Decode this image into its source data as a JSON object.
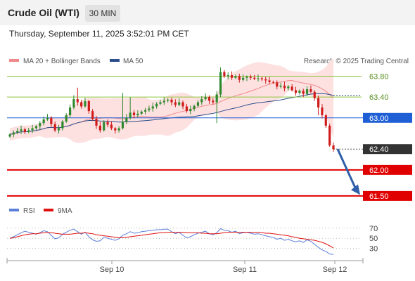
{
  "header": {
    "title": "Crude Oil (WTI)",
    "timeframe": "30 MIN",
    "datetime": "Thursday, September 11, 2025 3:52:01 PM CET"
  },
  "legend": {
    "ma20_label": "MA 20 + Bollinger Bands",
    "ma50_label": "MA 50",
    "ma20_color": "#f08a8a",
    "ma50_color": "#2c4f8c",
    "credit": "Research © 2025 Trading Central"
  },
  "rsi_legend": {
    "rsi_label": "RSI",
    "ma_label": "9MA",
    "rsi_color": "#5a7fd8",
    "ma_color": "#e01010"
  },
  "chart_data": [
    {
      "type": "candlestick",
      "title": "",
      "ylim": [
        61.35,
        64.05
      ],
      "x_ticks": [
        "Sep 10",
        "Sep 11",
        "Sep 12"
      ],
      "levels": [
        {
          "value": 63.8,
          "label": "63.80",
          "style": "resistance",
          "color": "#8cc63f"
        },
        {
          "value": 63.4,
          "label": "63.40",
          "style": "resistance",
          "color": "#8cc63f"
        },
        {
          "value": 63.0,
          "label": "63.00",
          "style": "pivot",
          "color": "#1f5fd6"
        },
        {
          "value": 62.4,
          "label": "62.40",
          "style": "last",
          "color": "#333333"
        },
        {
          "value": 62.0,
          "label": "62.00",
          "style": "support",
          "color": "#e00000"
        },
        {
          "value": 61.5,
          "label": "61.50",
          "style": "support",
          "color": "#e00000"
        }
      ],
      "close": [
        62.68,
        62.72,
        62.75,
        62.78,
        62.73,
        62.76,
        62.8,
        62.84,
        62.9,
        62.97,
        63.0,
        62.88,
        62.76,
        62.8,
        62.93,
        63.05,
        63.2,
        63.36,
        63.3,
        63.22,
        63.32,
        63.13,
        62.98,
        62.85,
        62.76,
        62.92,
        62.87,
        62.8,
        62.76,
        62.8,
        62.93,
        63.0,
        63.1,
        63.05,
        63.08,
        63.12,
        63.15,
        63.18,
        63.22,
        63.27,
        63.3,
        63.33,
        63.35,
        63.3,
        63.25,
        63.3,
        63.22,
        63.13,
        63.17,
        63.23,
        63.3,
        63.36,
        63.4,
        63.33,
        63.3,
        63.45,
        63.88,
        63.8,
        63.82,
        63.77,
        63.8,
        63.73,
        63.77,
        63.79,
        63.77,
        63.75,
        63.76,
        63.74,
        63.72,
        63.69,
        63.68,
        63.6,
        63.62,
        63.57,
        63.6,
        63.53,
        63.48,
        63.52,
        63.46,
        63.55,
        63.5,
        63.38,
        63.2,
        63.05,
        62.85,
        62.47,
        62.4
      ],
      "rsi": {
        "values": [
          50,
          53,
          57,
          61,
          64,
          62,
          60,
          58,
          61,
          65,
          63,
          56,
          49,
          51,
          58,
          62,
          66,
          68,
          63,
          58,
          62,
          53,
          47,
          44,
          45,
          52,
          50,
          48,
          46,
          49,
          56,
          59,
          63,
          60,
          61,
          63,
          64,
          65,
          66,
          67,
          67,
          68,
          68,
          63,
          59,
          62,
          56,
          51,
          53,
          57,
          60,
          62,
          64,
          59,
          57,
          61,
          69,
          66,
          65,
          62,
          64,
          59,
          61,
          62,
          60,
          58,
          59,
          57,
          55,
          53,
          52,
          48,
          50,
          46,
          48,
          45,
          43,
          45,
          42,
          47,
          44,
          38,
          32,
          27,
          24,
          19,
          18
        ],
        "ma": [
          50,
          51,
          53,
          55,
          57,
          58,
          59,
          59,
          60,
          61,
          61,
          61,
          60,
          59,
          58,
          58,
          58,
          59,
          60,
          60,
          61,
          60,
          59,
          57,
          56,
          55,
          54,
          53,
          52,
          51,
          51,
          52,
          53,
          54,
          55,
          56,
          57,
          58,
          59,
          60,
          61,
          61,
          62,
          62,
          62,
          62,
          62,
          61,
          61,
          61,
          61,
          60,
          60,
          59,
          59,
          59,
          60,
          61,
          62,
          62,
          62,
          62,
          62,
          62,
          62,
          62,
          62,
          61,
          60,
          60,
          59,
          58,
          57,
          56,
          55,
          53,
          52,
          50,
          49,
          48,
          47,
          46,
          44,
          42,
          39,
          35,
          31
        ],
        "ylim": [
          10,
          85
        ],
        "ticks": [
          "70",
          "50",
          "30"
        ]
      }
    }
  ]
}
